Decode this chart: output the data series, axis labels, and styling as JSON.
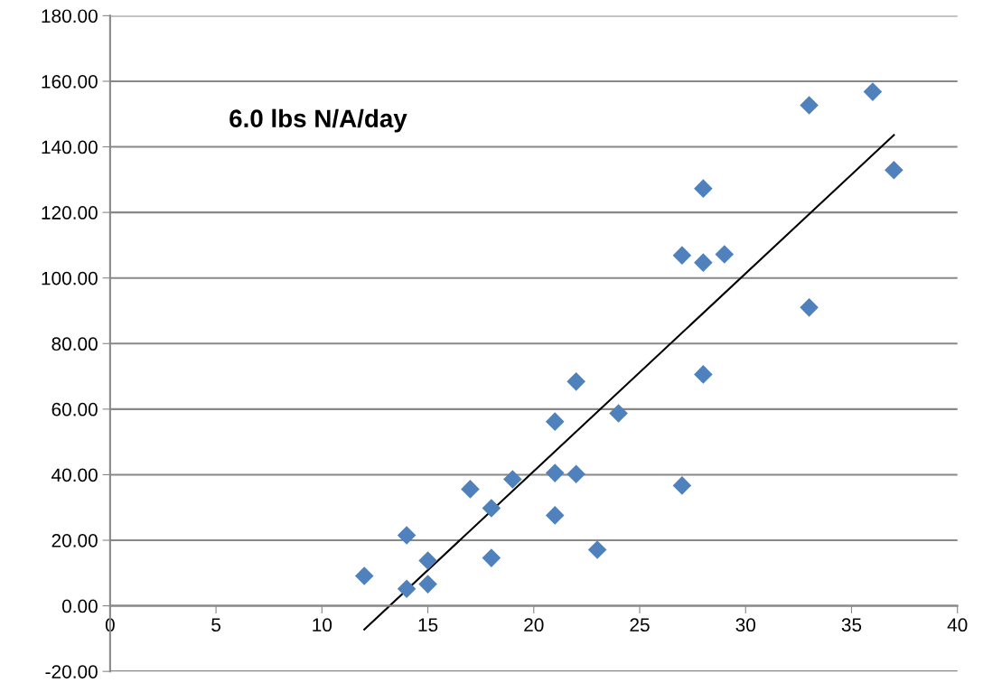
{
  "chart_data": {
    "type": "scatter",
    "annotations": [
      "6.0 lbs N/A/day"
    ],
    "series": [
      {
        "color": "#4f81bd",
        "marker": "diamond",
        "x": [
          12,
          14,
          14,
          15,
          15,
          17,
          18,
          18,
          19,
          21,
          21,
          21,
          22,
          22,
          23,
          24,
          27,
          27,
          28,
          28,
          28,
          29,
          33,
          33,
          36,
          37
        ],
        "values": [
          9.1,
          21.5,
          5.2,
          13.8,
          6.6,
          35.6,
          29.8,
          14.6,
          38.6,
          56.2,
          40.5,
          27.6,
          68.4,
          40.2,
          17.1,
          58.7,
          106.9,
          36.7,
          127.3,
          104.7,
          70.6,
          107.2,
          152.7,
          91.0,
          156.8,
          132.9
        ]
      },
      {
        "type": "line",
        "color": "#000000",
        "marker": "none",
        "line_style": "solid",
        "x": [
          12,
          37
        ],
        "values": [
          -7.2,
          143.6
        ]
      }
    ],
    "xlim": [
      0,
      40
    ],
    "xticks": [
      0,
      5,
      10,
      15,
      20,
      25,
      30,
      35,
      40
    ],
    "ylim": [
      -20,
      180
    ],
    "yticks": [
      {
        "value": -20,
        "label": "-20.00"
      },
      {
        "value": 0,
        "label": "0.00"
      },
      {
        "value": 20,
        "label": "20.00"
      },
      {
        "value": 40,
        "label": "40.00"
      },
      {
        "value": 60,
        "label": "60.00"
      },
      {
        "value": 80,
        "label": "80.00"
      },
      {
        "value": 100,
        "label": "100.00"
      },
      {
        "value": 120,
        "label": "120.00"
      },
      {
        "value": 140,
        "label": "140.00"
      },
      {
        "value": 160,
        "label": "160.00"
      },
      {
        "value": 180,
        "label": "180.00"
      }
    ],
    "grid": "y",
    "legend": false
  }
}
